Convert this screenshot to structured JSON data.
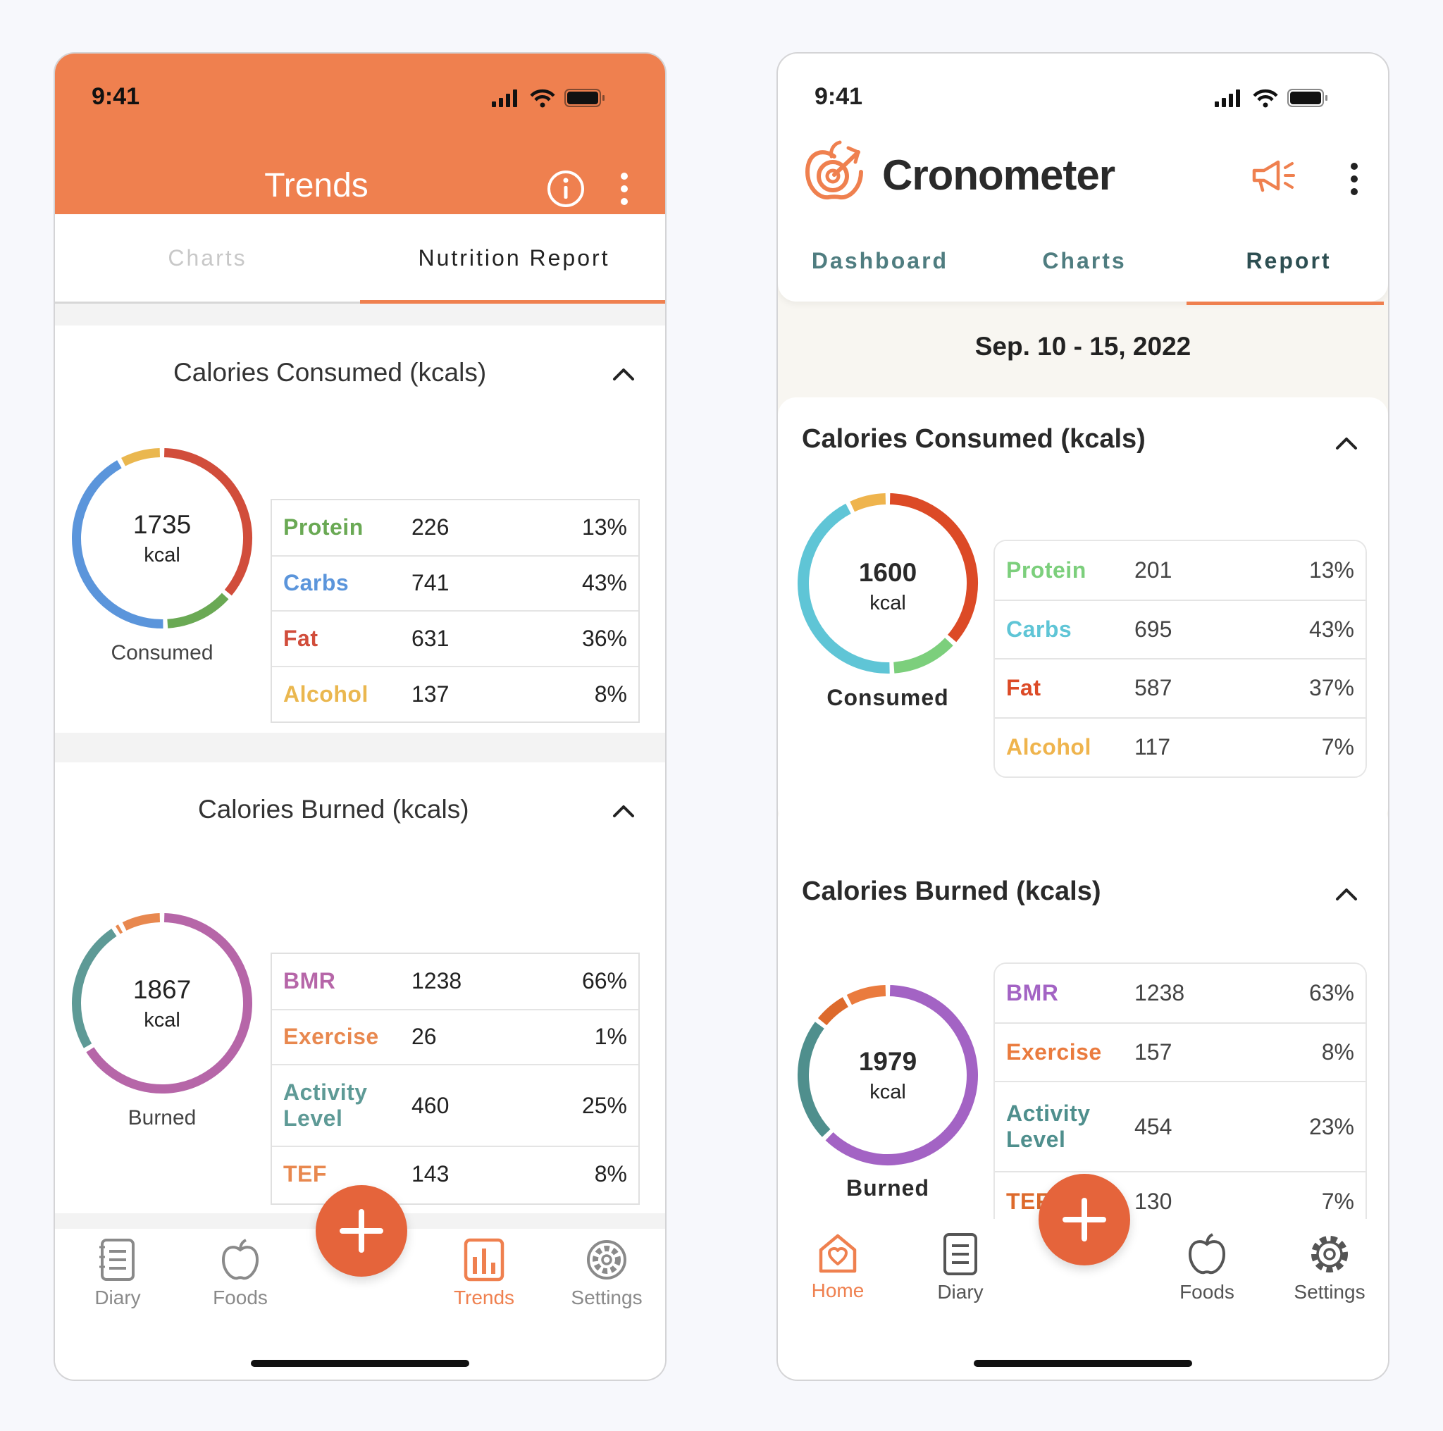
{
  "left": {
    "status": {
      "time": "9:41"
    },
    "header": {
      "title": "Trends"
    },
    "tabs": [
      {
        "label": "Charts"
      },
      {
        "label": "Nutrition Report"
      }
    ],
    "consumed": {
      "title": "Calories Consumed (kcals)",
      "total": "1735",
      "unit": "kcal",
      "caption": "Consumed",
      "rows": [
        {
          "label": "Protein",
          "value": "226",
          "pct": "13%",
          "color": "#6aa954"
        },
        {
          "label": "Carbs",
          "value": "741",
          "pct": "43%",
          "color": "#5b95db"
        },
        {
          "label": "Fat",
          "value": "631",
          "pct": "36%",
          "color": "#d14d3b"
        },
        {
          "label": "Alcohol",
          "value": "137",
          "pct": "8%",
          "color": "#eab74f"
        }
      ]
    },
    "burned": {
      "title": "Calories Burned (kcals)",
      "total": "1867",
      "unit": "kcal",
      "caption": "Burned",
      "rows": [
        {
          "label": "BMR",
          "value": "1238",
          "pct": "66%",
          "color": "#b666a8"
        },
        {
          "label": "Exercise",
          "value": "26",
          "pct": "1%",
          "color": "#e8884f"
        },
        {
          "label": "Activity Level",
          "value": "460",
          "pct": "25%",
          "color": "#5e9a96"
        },
        {
          "label": "TEF",
          "value": "143",
          "pct": "8%",
          "color": "#e8884f"
        }
      ]
    },
    "nav": [
      {
        "label": "Diary",
        "icon": "diary-icon"
      },
      {
        "label": "Foods",
        "icon": "apple-icon"
      },
      {
        "label": "Trends",
        "icon": "trends-icon"
      },
      {
        "label": "Settings",
        "icon": "gear-icon"
      }
    ]
  },
  "right": {
    "status": {
      "time": "9:41"
    },
    "brand": "Cronometer",
    "tabs": [
      {
        "label": "Dashboard"
      },
      {
        "label": "Charts"
      },
      {
        "label": "Report"
      }
    ],
    "date": "Sep. 10 - 15, 2022",
    "consumed": {
      "title": "Calories Consumed (kcals)",
      "total": "1600",
      "unit": "kcal",
      "caption": "Consumed",
      "rows": [
        {
          "label": "Protein",
          "value": "201",
          "pct": "13%",
          "color": "#7ccf7c"
        },
        {
          "label": "Carbs",
          "value": "695",
          "pct": "43%",
          "color": "#5fc5d6"
        },
        {
          "label": "Fat",
          "value": "587",
          "pct": "37%",
          "color": "#dc4a26"
        },
        {
          "label": "Alcohol",
          "value": "117",
          "pct": "7%",
          "color": "#efb44d"
        }
      ]
    },
    "burned": {
      "title": "Calories Burned (kcals)",
      "total": "1979",
      "unit": "kcal",
      "caption": "Burned",
      "rows": [
        {
          "label": "BMR",
          "value": "1238",
          "pct": "63%",
          "color": "#a363c4"
        },
        {
          "label": "Exercise",
          "value": "157",
          "pct": "8%",
          "color": "#ea7b3e"
        },
        {
          "label": "Activity Level",
          "value": "454",
          "pct": "23%",
          "color": "#4f8f8d"
        },
        {
          "label": "TEF",
          "value": "130",
          "pct": "7%",
          "color": "#dd6a2c"
        }
      ]
    },
    "nav": [
      {
        "label": "Home",
        "icon": "home-icon"
      },
      {
        "label": "Diary",
        "icon": "diary-icon"
      },
      {
        "label": "Foods",
        "icon": "apple-icon"
      },
      {
        "label": "Settings",
        "icon": "gear-icon"
      }
    ]
  },
  "colors": {
    "accent": "#ef804f",
    "fab": "#e5643b"
  }
}
